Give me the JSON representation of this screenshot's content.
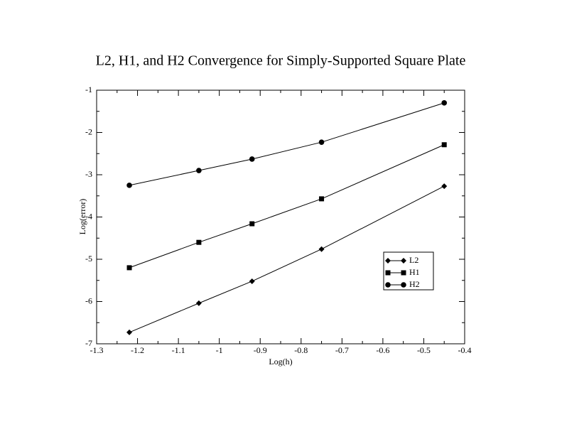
{
  "chart_data": {
    "type": "line",
    "title": "L2, H1, and H2 Convergence for Simply-Supported Square Plate",
    "x_label": "Log(h)",
    "y_label": "Log(error)",
    "x": [
      -1.22,
      -1.05,
      -0.92,
      -0.75,
      -0.45
    ],
    "series": [
      {
        "name": "L2",
        "color": "#000000",
        "marker": "diamond",
        "values": [
          -6.73,
          -6.04,
          -5.52,
          -4.76,
          -3.27
        ]
      },
      {
        "name": "H1",
        "color": "#000000",
        "marker": "square",
        "values": [
          -5.2,
          -4.6,
          -4.16,
          -3.57,
          -2.29
        ]
      },
      {
        "name": "H2",
        "color": "#000000",
        "marker": "circle",
        "values": [
          -3.25,
          -2.9,
          -2.63,
          -2.23,
          -1.3
        ]
      }
    ],
    "xlim": [
      -1.3,
      -0.4
    ],
    "xticks": [
      -1.3,
      -1.2,
      -1.1,
      -1,
      -0.9,
      -0.8,
      -0.7,
      -0.6,
      -0.5,
      -0.4
    ],
    "ylim": [
      -7,
      -1
    ],
    "yticks": [
      -7,
      -6,
      -5,
      -4,
      -3,
      -2,
      -1
    ],
    "grid": false,
    "legend": "lower-right"
  }
}
